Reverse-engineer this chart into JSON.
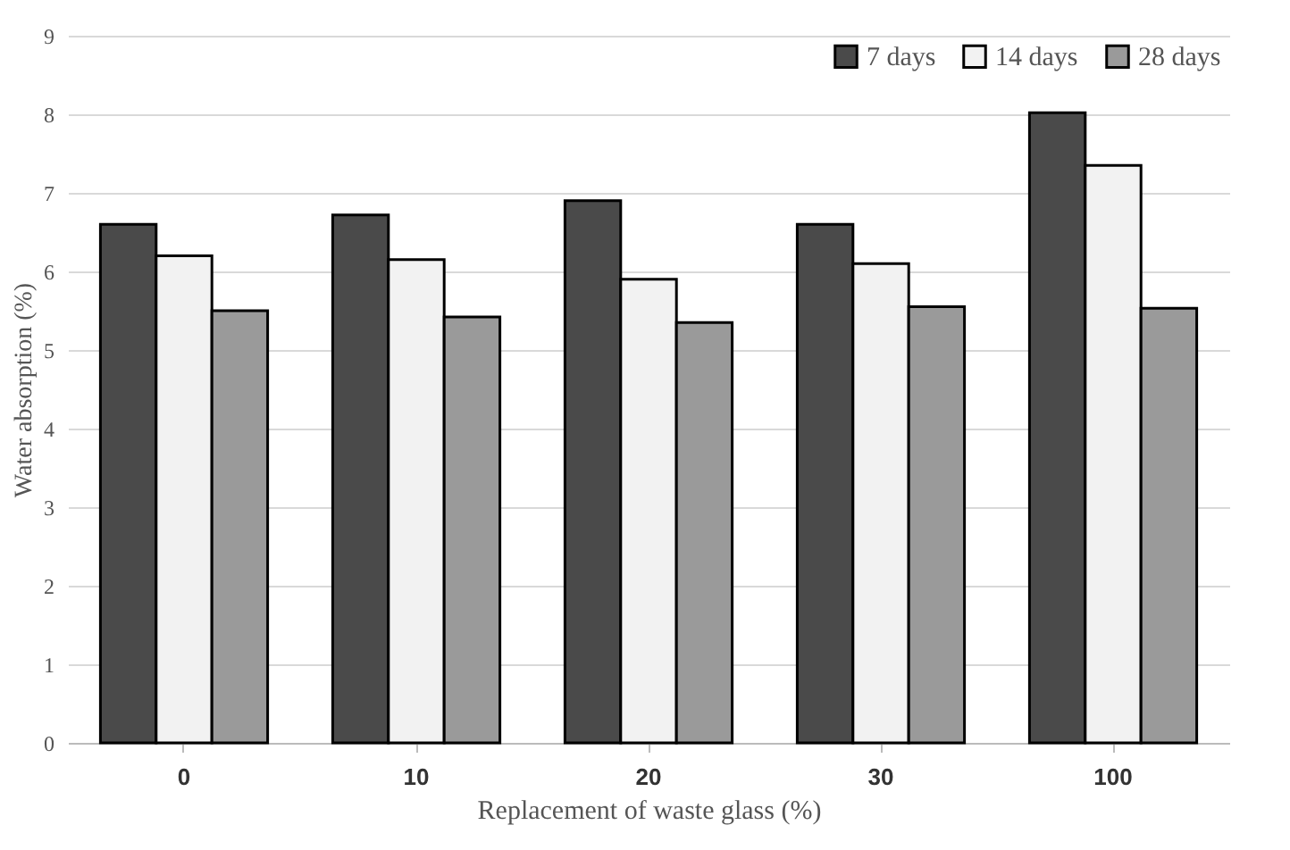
{
  "chart_data": {
    "type": "bar",
    "xlabel": "Replacement of waste glass (%)",
    "ylabel": "Water absorption (%)",
    "categories": [
      "0",
      "10",
      "20",
      "30",
      "100"
    ],
    "series": [
      {
        "name": "7 days",
        "color": "#4a4a4a",
        "values": [
          6.6,
          6.72,
          6.9,
          6.6,
          8.02
        ]
      },
      {
        "name": "14 days",
        "color": "#f2f2f2",
        "values": [
          6.2,
          6.15,
          5.9,
          6.1,
          7.35
        ]
      },
      {
        "name": "28 days",
        "color": "#9a9a9a",
        "values": [
          5.5,
          5.42,
          5.35,
          5.55,
          5.53
        ]
      }
    ],
    "ylim": [
      0,
      9
    ],
    "yticks": [
      0,
      1,
      2,
      3,
      4,
      5,
      6,
      7,
      8,
      9
    ],
    "grid": "y",
    "legend": "top right"
  }
}
